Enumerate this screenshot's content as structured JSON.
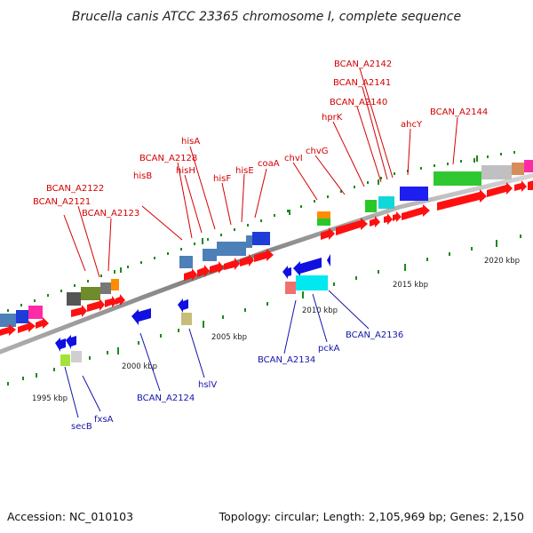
{
  "title": "Brucella canis ATCC 23365 chromosome I, complete sequence",
  "footer": {
    "accession": "Accession: NC_010103",
    "summary": "Topology: circular; Length: 2,105,969 bp; Genes: 2,150"
  },
  "scale_labels": [
    "1995 kbp",
    "2000 kbp",
    "2005 kbp",
    "2010 kbp",
    "2015 kbp",
    "2020 kbp"
  ],
  "gene_labels_forward": [
    "BCAN_A2122",
    "BCAN_A2121",
    "BCAN_A2123",
    "hisB",
    "BCAN_A2128",
    "hisH",
    "hisA",
    "hisF",
    "hisE",
    "coaA",
    "chvI",
    "chvG",
    "hprK",
    "BCAN_A2140",
    "BCAN_A2141",
    "BCAN_A2142",
    "ahcY",
    "BCAN_A2144"
  ],
  "gene_labels_reverse": [
    "secB",
    "fxsA",
    "BCAN_A2124",
    "hslV",
    "BCAN_A2134",
    "pckA",
    "BCAN_A2136"
  ],
  "colors": {
    "forward_cds": "#ff1010",
    "reverse_cds": "#1010e0",
    "backbone": "#8c8c8c",
    "forward_label": "#d40000",
    "reverse_label": "#1414a8",
    "tick": "#1a8a1a"
  }
}
